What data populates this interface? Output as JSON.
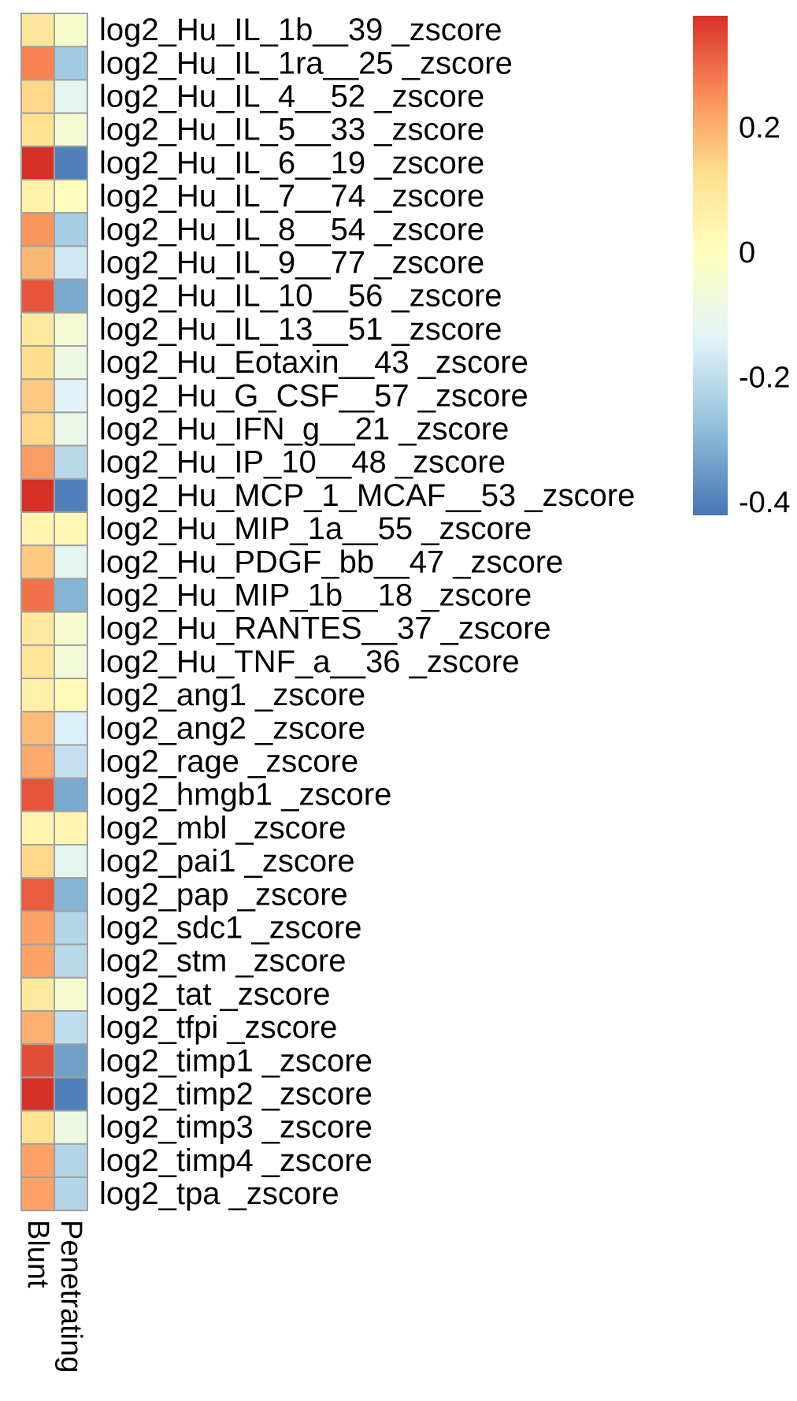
{
  "chart_data": {
    "type": "heatmap",
    "columns": [
      "Blunt",
      "Penetrating"
    ],
    "rows": [
      {
        "label": "log2_Hu_IL_1b__39 _zscore",
        "values": [
          0.1,
          -0.03
        ]
      },
      {
        "label": "log2_Hu_IL_1ra__25 _zscore",
        "values": [
          0.27,
          -0.25
        ]
      },
      {
        "label": "log2_Hu_IL_4__52 _zscore",
        "values": [
          0.14,
          -0.12
        ]
      },
      {
        "label": "log2_Hu_IL_5__33 _zscore",
        "values": [
          0.12,
          -0.05
        ]
      },
      {
        "label": "log2_Hu_IL_6__19 _zscore",
        "values": [
          0.38,
          -0.4
        ]
      },
      {
        "label": "log2_Hu_IL_7__74 _zscore",
        "values": [
          0.05,
          0.01
        ]
      },
      {
        "label": "log2_Hu_IL_8__54 _zscore",
        "values": [
          0.24,
          -0.24
        ]
      },
      {
        "label": "log2_Hu_IL_9__77 _zscore",
        "values": [
          0.19,
          -0.17
        ]
      },
      {
        "label": "log2_Hu_IL_10__56 _zscore",
        "values": [
          0.33,
          -0.32
        ]
      },
      {
        "label": "log2_Hu_IL_13__51 _zscore",
        "values": [
          0.09,
          -0.05
        ]
      },
      {
        "label": "log2_Hu_Eotaxin__43 _zscore",
        "values": [
          0.13,
          -0.08
        ]
      },
      {
        "label": "log2_Hu_G_CSF__57 _zscore",
        "values": [
          0.16,
          -0.14
        ]
      },
      {
        "label": "log2_Hu_IFN_g__21 _zscore",
        "values": [
          0.14,
          -0.1
        ]
      },
      {
        "label": "log2_Hu_IP_10__48 _zscore",
        "values": [
          0.23,
          -0.21
        ]
      },
      {
        "label": "log2_Hu_MCP_1_MCAF__53 _zscore",
        "values": [
          0.38,
          -0.4
        ]
      },
      {
        "label": "log2_Hu_MIP_1a__55 _zscore",
        "values": [
          0.04,
          0.03
        ]
      },
      {
        "label": "log2_Hu_PDGF_bb__47 _zscore",
        "values": [
          0.16,
          -0.12
        ]
      },
      {
        "label": "log2_Hu_MIP_1b__18 _zscore",
        "values": [
          0.29,
          -0.3
        ]
      },
      {
        "label": "log2_Hu_RANTES__37 _zscore",
        "values": [
          0.09,
          -0.04
        ]
      },
      {
        "label": "log2_Hu_TNF_a__36 _zscore",
        "values": [
          0.11,
          -0.06
        ]
      },
      {
        "label": "log2_ang1 _zscore",
        "values": [
          0.06,
          0.02
        ]
      },
      {
        "label": "log2_ang2 _zscore",
        "values": [
          0.18,
          -0.15
        ]
      },
      {
        "label": "log2_rage _zscore",
        "values": [
          0.21,
          -0.19
        ]
      },
      {
        "label": "log2_hmgb1 _zscore",
        "values": [
          0.33,
          -0.32
        ]
      },
      {
        "label": "log2_mbl _zscore",
        "values": [
          0.04,
          0.04
        ]
      },
      {
        "label": "log2_pai1 _zscore",
        "values": [
          0.14,
          -0.12
        ]
      },
      {
        "label": "log2_pap _zscore",
        "values": [
          0.32,
          -0.3
        ]
      },
      {
        "label": "log2_sdc1 _zscore",
        "values": [
          0.22,
          -0.22
        ]
      },
      {
        "label": "log2_stm _zscore",
        "values": [
          0.22,
          -0.21
        ]
      },
      {
        "label": "log2_tat _zscore",
        "values": [
          0.09,
          -0.04
        ]
      },
      {
        "label": "log2_tfpi _zscore",
        "values": [
          0.2,
          -0.2
        ]
      },
      {
        "label": "log2_timp1 _zscore",
        "values": [
          0.34,
          -0.34
        ]
      },
      {
        "label": "log2_timp2 _zscore",
        "values": [
          0.38,
          -0.4
        ]
      },
      {
        "label": "log2_timp3 _zscore",
        "values": [
          0.12,
          -0.08
        ]
      },
      {
        "label": "log2_timp4 _zscore",
        "values": [
          0.22,
          -0.22
        ]
      },
      {
        "label": "log2_tpa _zscore",
        "values": [
          0.22,
          -0.22
        ]
      }
    ],
    "legend": {
      "ticks": [
        0.2,
        0,
        -0.2,
        -0.4
      ],
      "tick_labels": [
        "0.2",
        "0",
        "-0.2",
        "-0.4"
      ],
      "range": [
        -0.42,
        0.38
      ],
      "colors": [
        "#4575B4",
        "#91BFDB",
        "#E0F3F8",
        "#FFFFBF",
        "#FEE090",
        "#FC8D59",
        "#D73027"
      ]
    },
    "cell_border_color": "#A0A0A0",
    "grid": false
  }
}
